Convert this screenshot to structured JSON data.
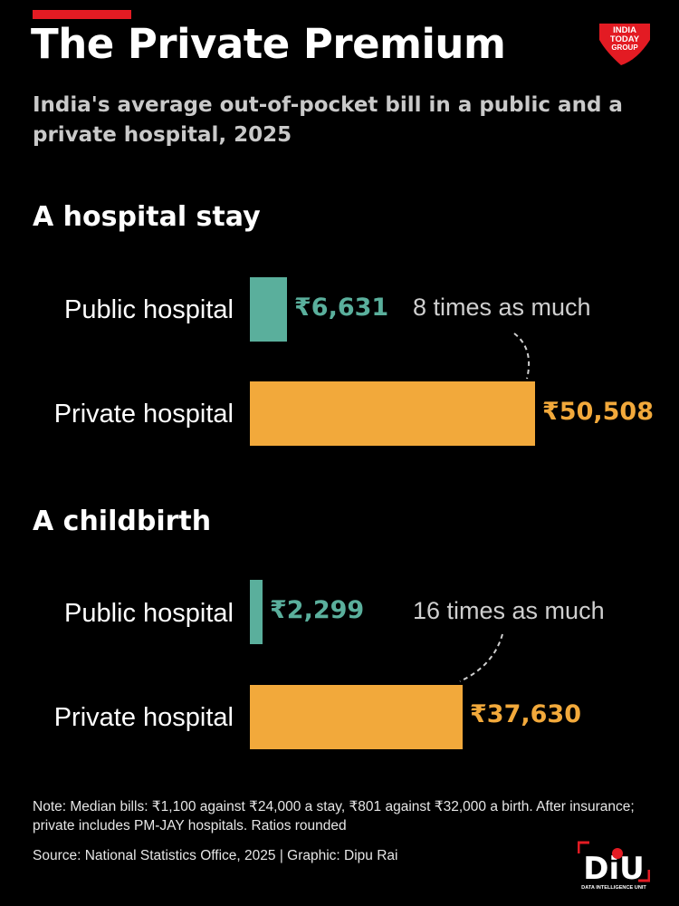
{
  "title": "The Private Premium",
  "subtitle": "India's average out-of-pocket bill in a public and a private hospital, 2025",
  "colors": {
    "accent": "#e31b23",
    "public": "#5aaf9c",
    "private": "#f2a93b",
    "background": "#000000"
  },
  "logos": {
    "itg": {
      "text_lines": [
        "INDIA",
        "TODAY",
        "GROUP"
      ]
    },
    "diu": {
      "mark": "DiU",
      "caption": "DATA INTELLIGENCE UNIT"
    }
  },
  "chart_data": [
    {
      "type": "bar",
      "orientation": "horizontal",
      "title": "A hospital stay",
      "categories": [
        "Public hospital",
        "Private hospital"
      ],
      "values": [
        6631,
        50508
      ],
      "value_labels": [
        "₹6,631",
        "₹50,508"
      ],
      "annotation": "8 times as much"
    },
    {
      "type": "bar",
      "orientation": "horizontal",
      "title": "A childbirth",
      "categories": [
        "Public hospital",
        "Private hospital"
      ],
      "values": [
        2299,
        37630
      ],
      "value_labels": [
        "₹2,299",
        "₹37,630"
      ],
      "annotation": "16 times as much"
    }
  ],
  "note": "Note: Median bills: ₹1,100 against ₹24,000 a stay, ₹801 against ₹32,000 a birth. After insurance; private includes PM-JAY hospitals. Ratios rounded",
  "source": "Source: National Statistics Office, 2025 | Graphic: Dipu Rai"
}
